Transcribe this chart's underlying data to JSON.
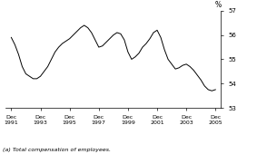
{
  "title": "",
  "ylabel": "%",
  "footnote": "(a) Total compensation of employees.",
  "ylim": [
    53,
    57
  ],
  "yticks": [
    53,
    54,
    55,
    56,
    57
  ],
  "xtick_labels": [
    "Dec\n1991",
    "Dec\n1993",
    "Dec\n1995",
    "Dec\n1997",
    "Dec\n1999",
    "Dec\n2001",
    "Dec\n2003",
    "Dec\n2005"
  ],
  "xtick_positions": [
    1991.92,
    1993.92,
    1995.92,
    1997.92,
    1999.92,
    2001.92,
    2003.92,
    2005.92
  ],
  "xlim": [
    1991.5,
    2006.3
  ],
  "line_color": "#000000",
  "line_width": 0.7,
  "background_color": "#ffffff",
  "x": [
    1991.92,
    1992.17,
    1992.42,
    1992.67,
    1992.92,
    1993.17,
    1993.42,
    1993.67,
    1993.92,
    1994.17,
    1994.42,
    1994.67,
    1994.92,
    1995.17,
    1995.42,
    1995.67,
    1995.92,
    1996.17,
    1996.42,
    1996.67,
    1996.92,
    1997.17,
    1997.42,
    1997.67,
    1997.92,
    1998.17,
    1998.42,
    1998.67,
    1998.92,
    1999.17,
    1999.42,
    1999.67,
    1999.92,
    2000.17,
    2000.42,
    2000.67,
    2000.92,
    2001.17,
    2001.42,
    2001.67,
    2001.92,
    2002.17,
    2002.42,
    2002.67,
    2002.92,
    2003.17,
    2003.42,
    2003.67,
    2003.92,
    2004.17,
    2004.42,
    2004.67,
    2004.92,
    2005.17,
    2005.42,
    2005.67,
    2005.92
  ],
  "y": [
    55.9,
    55.6,
    55.2,
    54.7,
    54.4,
    54.3,
    54.2,
    54.2,
    54.3,
    54.5,
    54.7,
    55.0,
    55.3,
    55.5,
    55.65,
    55.75,
    55.85,
    56.0,
    56.15,
    56.3,
    56.4,
    56.3,
    56.1,
    55.8,
    55.5,
    55.55,
    55.7,
    55.85,
    56.0,
    56.1,
    56.05,
    55.8,
    55.3,
    55.0,
    55.1,
    55.25,
    55.5,
    55.65,
    55.85,
    56.1,
    56.2,
    55.9,
    55.4,
    55.0,
    54.8,
    54.6,
    54.65,
    54.75,
    54.8,
    54.7,
    54.55,
    54.35,
    54.15,
    53.9,
    53.75,
    53.7,
    53.75
  ]
}
